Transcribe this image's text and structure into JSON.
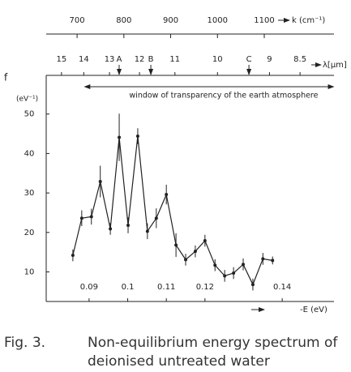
{
  "chart_data": {
    "type": "errorbar",
    "x": [
      0.0858,
      0.0881,
      0.0906,
      0.0929,
      0.0955,
      0.0978,
      0.1001,
      0.1026,
      0.1051,
      0.1074,
      0.11,
      0.1125,
      0.115,
      0.1175,
      0.12,
      0.1226,
      0.1251,
      0.1274,
      0.1299,
      0.1324,
      0.135,
      0.1375
    ],
    "values": [
      14.2,
      23.6,
      24.0,
      32.9,
      20.9,
      44.1,
      21.8,
      44.4,
      20.3,
      23.6,
      29.6,
      16.8,
      13.1,
      15.2,
      17.9,
      11.7,
      9.0,
      9.7,
      11.9,
      6.8,
      13.3,
      12.9
    ],
    "errors": [
      1.5,
      2,
      2,
      4,
      1.5,
      6,
      2,
      2,
      2,
      2.5,
      2.5,
      3,
      1.5,
      1.5,
      1.5,
      1.5,
      1.5,
      1.5,
      1.5,
      1.5,
      1.5,
      1
    ],
    "color": "#222222",
    "xlim": [
      0.0789,
      0.1534
    ],
    "xticks": [
      0.09,
      0.1,
      0.11,
      0.12,
      0.14
    ],
    "ylim": [
      2.5,
      59.8
    ],
    "yticks": [
      10,
      20,
      30,
      40,
      50
    ],
    "xlabel": "-E (eV)",
    "ylabel": "f",
    "yunit": "(eV⁻¹)",
    "k_axis": {
      "label": "k (cm⁻¹)",
      "lim": [
        634,
        1249
      ],
      "ticks": [
        700,
        800,
        900,
        1000,
        1100
      ]
    },
    "lambda_axis": {
      "label": "λ[μm]",
      "ticks": [
        15,
        14,
        13,
        12,
        11,
        10,
        9,
        8.5
      ],
      "markers": [
        {
          "label": "A",
          "value": 12.66
        },
        {
          "label": "B",
          "value": 11.66
        },
        {
          "label": "C",
          "value": 9.37
        }
      ]
    },
    "window": {
      "label": "window of transparency of the earth atmosphere",
      "range": [
        14,
        8
      ]
    }
  },
  "caption": {
    "number": "Fig. 3.",
    "lines": [
      "Non-equilibrium energy spectrum of",
      "deionised untreated water"
    ]
  }
}
